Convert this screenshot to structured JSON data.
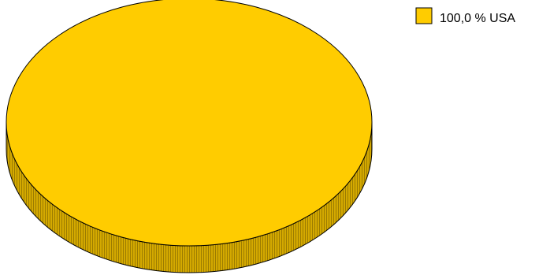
{
  "chart_data": {
    "type": "pie",
    "style": "3d",
    "slices": [
      {
        "label": "USA",
        "value": 100.0,
        "display": "100,0 % USA",
        "color": "#FFCC00"
      }
    ],
    "legend_position": "top-right"
  },
  "colors": {
    "slice_top": "#FFCC00",
    "slice_side": "#C9A000",
    "outline": "#000000",
    "background": "#FFFFFF"
  }
}
